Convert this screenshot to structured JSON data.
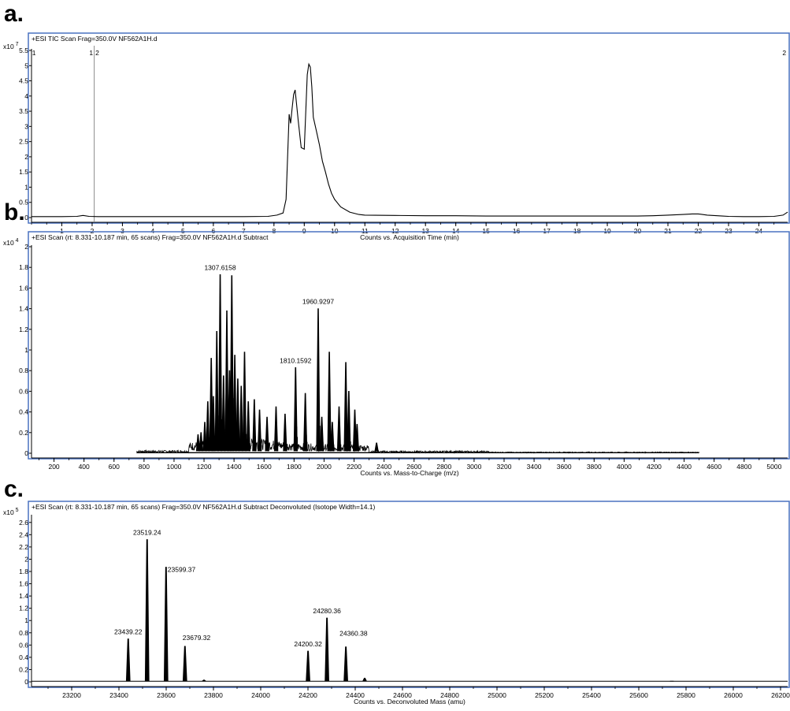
{
  "panels": [
    {
      "letter": "a."
    },
    {
      "letter": "b."
    },
    {
      "letter": "c."
    }
  ],
  "chart_data": [
    {
      "type": "line",
      "title": "+ESI TIC Scan Frag=350.0V NF562A1H.d",
      "xlabel": "Counts vs. Acquisition Time (min)",
      "y_multiplier": "x10",
      "y_exponent": "7",
      "xlim": [
        0,
        24.95
      ],
      "ylim": [
        0,
        5.5
      ],
      "xticks": [
        1,
        2,
        3,
        4,
        5,
        6,
        7,
        8,
        9,
        10,
        11,
        12,
        13,
        14,
        15,
        16,
        17,
        18,
        19,
        20,
        21,
        22,
        23,
        24
      ],
      "yticks": [
        0,
        0.5,
        1,
        1.5,
        2,
        2.5,
        3,
        3.5,
        4,
        4.5,
        5,
        5.5
      ],
      "markers": [
        {
          "x": 0.02,
          "labels": [
            "1"
          ]
        },
        {
          "x": 2.07,
          "labels": [
            "1",
            "2"
          ]
        },
        {
          "x": 24.9,
          "labels": [
            "2"
          ]
        }
      ],
      "marker_line_x": 2.07,
      "series": [
        {
          "x": [
            0,
            1,
            1.5,
            1.7,
            1.9,
            2.2,
            3,
            4,
            5,
            6,
            7,
            7.8,
            8.1,
            8.3,
            8.4,
            8.5,
            8.55,
            8.6,
            8.65,
            8.7,
            8.8,
            8.9,
            9.0,
            9.1,
            9.15,
            9.2,
            9.25,
            9.3,
            9.4,
            9.5,
            9.6,
            9.7,
            9.8,
            9.9,
            10.0,
            10.2,
            10.5,
            10.8,
            11,
            12,
            13,
            14,
            15,
            16,
            17,
            18,
            19,
            20,
            20.5,
            21,
            21.5,
            21.8,
            22,
            22.3,
            22.8,
            23,
            23.5,
            24,
            24.5,
            24.8,
            24.95
          ],
          "y": [
            0.03,
            0.03,
            0.04,
            0.07,
            0.04,
            0.03,
            0.03,
            0.03,
            0.03,
            0.03,
            0.03,
            0.04,
            0.08,
            0.15,
            0.6,
            3.4,
            3.1,
            3.6,
            4.05,
            4.2,
            3.2,
            2.3,
            2.25,
            4.7,
            5.05,
            4.95,
            4.3,
            3.3,
            2.85,
            2.4,
            1.85,
            1.5,
            1.1,
            0.8,
            0.6,
            0.35,
            0.18,
            0.1,
            0.08,
            0.07,
            0.06,
            0.06,
            0.05,
            0.05,
            0.05,
            0.05,
            0.05,
            0.05,
            0.06,
            0.08,
            0.1,
            0.12,
            0.12,
            0.08,
            0.05,
            0.04,
            0.03,
            0.03,
            0.04,
            0.08,
            0.18
          ]
        }
      ]
    },
    {
      "type": "line",
      "title": "+ESI Scan (rt: 8.331-10.187 min, 65 scans) Frag=350.0V NF562A1H.d  Subtract",
      "xlabel": "Counts vs. Mass-to-Charge (m/z)",
      "y_multiplier": "x10",
      "y_exponent": "4",
      "xlim": [
        50,
        5090
      ],
      "ylim": [
        0,
        2
      ],
      "xticks": [
        200,
        400,
        600,
        800,
        1000,
        1200,
        1400,
        1600,
        1800,
        2000,
        2200,
        2400,
        2600,
        2800,
        3000,
        3200,
        3400,
        3600,
        3800,
        4000,
        4200,
        4400,
        4600,
        4800,
        5000
      ],
      "yticks": [
        0,
        0.2,
        0.4,
        0.6,
        0.8,
        1,
        1.2,
        1.4,
        1.6,
        1.8,
        2
      ],
      "range": [
        750,
        4500
      ],
      "noise_level": 0.04,
      "peaks": [
        {
          "x": 1160,
          "y": 0.18
        },
        {
          "x": 1180,
          "y": 0.2
        },
        {
          "x": 1205,
          "y": 0.3
        },
        {
          "x": 1225,
          "y": 0.5
        },
        {
          "x": 1248,
          "y": 0.92
        },
        {
          "x": 1262,
          "y": 0.55
        },
        {
          "x": 1285,
          "y": 1.18
        },
        {
          "x": 1307.6,
          "y": 1.73
        },
        {
          "x": 1330,
          "y": 0.75
        },
        {
          "x": 1352,
          "y": 1.38
        },
        {
          "x": 1370,
          "y": 0.8
        },
        {
          "x": 1385,
          "y": 1.72
        },
        {
          "x": 1405,
          "y": 0.95
        },
        {
          "x": 1425,
          "y": 0.72
        },
        {
          "x": 1448,
          "y": 0.65
        },
        {
          "x": 1470,
          "y": 0.98
        },
        {
          "x": 1495,
          "y": 0.5
        },
        {
          "x": 1535,
          "y": 0.52
        },
        {
          "x": 1570,
          "y": 0.42
        },
        {
          "x": 1620,
          "y": 0.35
        },
        {
          "x": 1680,
          "y": 0.45
        },
        {
          "x": 1740,
          "y": 0.38
        },
        {
          "x": 1810.2,
          "y": 0.83
        },
        {
          "x": 1875,
          "y": 0.58
        },
        {
          "x": 1960.9,
          "y": 1.4
        },
        {
          "x": 1985,
          "y": 0.35
        },
        {
          "x": 2035,
          "y": 0.98
        },
        {
          "x": 2055,
          "y": 0.3
        },
        {
          "x": 2100,
          "y": 0.45
        },
        {
          "x": 2145,
          "y": 0.88
        },
        {
          "x": 2165,
          "y": 0.6
        },
        {
          "x": 2205,
          "y": 0.42
        },
        {
          "x": 2220,
          "y": 0.28
        },
        {
          "x": 2350,
          "y": 0.1
        }
      ],
      "annotations": [
        {
          "x": 1307.6,
          "y": 1.73,
          "label": "1307.6158"
        },
        {
          "x": 1960.9,
          "y": 1.4,
          "label": "1960.9297"
        },
        {
          "x": 1810.2,
          "y": 0.83,
          "label": "1810.1592"
        }
      ]
    },
    {
      "type": "line",
      "title": "+ESI Scan (rt: 8.331-10.187 min, 65 scans) Frag=350.0V NF562A1H.d  Subtract Deconvoluted (Isotope Width=14.1)",
      "xlabel": "Counts vs. Deconvoluted Mass (amu)",
      "y_multiplier": "x10",
      "y_exponent": "5",
      "xlim": [
        23030,
        26230
      ],
      "ylim": [
        0,
        2.7
      ],
      "xticks": [
        23200,
        23400,
        23600,
        23800,
        24000,
        24200,
        24400,
        24600,
        24800,
        25000,
        25200,
        25400,
        25600,
        25800,
        26000,
        26200
      ],
      "yticks": [
        0,
        0.2,
        0.4,
        0.6,
        0.8,
        1,
        1.2,
        1.4,
        1.6,
        1.8,
        2,
        2.2,
        2.4,
        2.6
      ],
      "peaks": [
        {
          "x": 23439.22,
          "y": 0.7
        },
        {
          "x": 23519.24,
          "y": 2.32
        },
        {
          "x": 23599.37,
          "y": 1.87
        },
        {
          "x": 23679.32,
          "y": 0.58
        },
        {
          "x": 23760,
          "y": 0.03
        },
        {
          "x": 24200.32,
          "y": 0.5
        },
        {
          "x": 24280.36,
          "y": 1.04
        },
        {
          "x": 24360.38,
          "y": 0.57
        },
        {
          "x": 24440,
          "y": 0.06
        },
        {
          "x": 25740,
          "y": 0.01
        }
      ],
      "annotations": [
        {
          "x": 23519.24,
          "y": 2.32,
          "label": "23519.24"
        },
        {
          "x": 23599.37,
          "y": 1.87,
          "label": "23599.37"
        },
        {
          "x": 23439.22,
          "y": 0.7,
          "label": "23439.22"
        },
        {
          "x": 23679.32,
          "y": 0.58,
          "label": "23679.32"
        },
        {
          "x": 24280.36,
          "y": 1.04,
          "label": "24280.36"
        },
        {
          "x": 24200.32,
          "y": 0.5,
          "label": "24200.32"
        },
        {
          "x": 24360.38,
          "y": 0.57,
          "label": "24360.38"
        }
      ]
    }
  ]
}
